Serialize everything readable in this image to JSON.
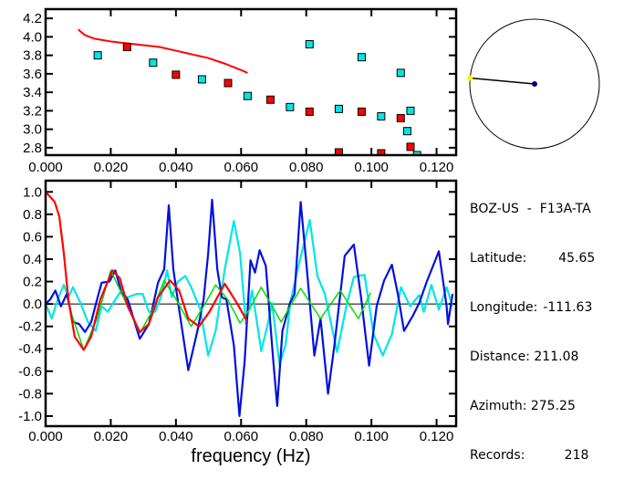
{
  "station_info": {
    "title": "BOZ-US  -  F13A-TA",
    "lines": [
      {
        "label": "Latitude:",
        "value": "45.65"
      },
      {
        "label": "Longitude:",
        "value": "-111.63"
      },
      {
        "label": "Distance:",
        "value": "211.08"
      },
      {
        "label": "Azimuth:",
        "value": "275.25"
      },
      {
        "label": "Records:",
        "value": "218"
      }
    ]
  },
  "colors": {
    "red": "#ff0000",
    "cyan": "#00e5e5",
    "blue": "#0010e0",
    "green": "#00dd00",
    "yellow": "#ffee00",
    "dark_blue": "#000080"
  },
  "chart_data": [
    {
      "type": "scatter",
      "xlim": [
        0,
        0.126
      ],
      "ylim": [
        2.72,
        4.3
      ],
      "xticks": [
        "0.000",
        "0.020",
        "0.040",
        "0.060",
        "0.080",
        "0.100",
        "0.120"
      ],
      "yticks": [
        "2.8",
        "3.0",
        "3.2",
        "3.4",
        "3.6",
        "3.8",
        "4.0",
        "4.2"
      ],
      "curve": {
        "color": "red",
        "x": [
          0.01,
          0.012,
          0.015,
          0.02,
          0.025,
          0.03,
          0.035,
          0.04,
          0.045,
          0.05,
          0.055,
          0.06,
          0.062
        ],
        "y": [
          4.08,
          4.02,
          3.98,
          3.95,
          3.93,
          3.91,
          3.89,
          3.85,
          3.81,
          3.77,
          3.71,
          3.64,
          3.61
        ]
      },
      "series": [
        {
          "color": "red",
          "x": [
            0.025,
            0.04,
            0.056,
            0.069,
            0.081,
            0.09,
            0.097,
            0.103,
            0.109,
            0.112
          ],
          "y": [
            3.89,
            3.59,
            3.5,
            3.32,
            3.19,
            2.75,
            3.19,
            2.74,
            3.12,
            2.81
          ]
        },
        {
          "color": "cyan",
          "x": [
            0.016,
            0.033,
            0.048,
            0.062,
            0.075,
            0.081,
            0.09,
            0.097,
            0.103,
            0.109,
            0.111,
            0.112,
            0.114
          ],
          "y": [
            3.8,
            3.72,
            3.54,
            3.36,
            3.24,
            3.92,
            3.22,
            3.78,
            3.14,
            3.61,
            2.98,
            3.2,
            2.72
          ]
        }
      ]
    },
    {
      "type": "line",
      "xlabel": "frequency (Hz)",
      "xlim": [
        0,
        0.126
      ],
      "ylim": [
        -1.09,
        1.1
      ],
      "xticks": [
        "0.000",
        "0.020",
        "0.040",
        "0.060",
        "0.080",
        "0.100",
        "0.120"
      ],
      "yticks": [
        "-1.0",
        "-0.8",
        "-0.6",
        "-0.4",
        "-0.2",
        "0.0",
        "0.2",
        "0.4",
        "0.6",
        "0.8",
        "1.0"
      ],
      "series": [
        {
          "color": "cyan",
          "x": [
            0,
            0.0019,
            0.0037,
            0.0056,
            0.007,
            0.0084,
            0.0107,
            0.013,
            0.0154,
            0.0172,
            0.0191,
            0.0214,
            0.0228,
            0.0252,
            0.028,
            0.0298,
            0.0317,
            0.0336,
            0.0354,
            0.0373,
            0.0387,
            0.0406,
            0.0429,
            0.0447,
            0.0475,
            0.0499,
            0.0522,
            0.055,
            0.0578,
            0.0597,
            0.0615,
            0.0634,
            0.0662,
            0.0681,
            0.0695,
            0.0718,
            0.0737,
            0.0751,
            0.0774,
            0.0811,
            0.0834,
            0.0857,
            0.0895,
            0.0923,
            0.0946,
            0.0979,
            0.1007,
            0.1035,
            0.1063,
            0.1091,
            0.1119,
            0.1147,
            0.1161,
            0.1184,
            0.1207,
            0.1231,
            0.1249
          ],
          "y": [
            0,
            -0.13,
            0.04,
            0.17,
            0.06,
            0.15,
            0.01,
            -0.16,
            -0.24,
            -0.02,
            -0.07,
            0.04,
            0.1,
            0.06,
            0.09,
            0.09,
            -0.07,
            -0.07,
            0.06,
            0.3,
            0.06,
            0.2,
            0.25,
            0.15,
            -0.05,
            -0.46,
            -0.24,
            0.31,
            0.74,
            0.45,
            -0.18,
            0.12,
            -0.42,
            -0.19,
            0.01,
            -0.54,
            -0.36,
            0.01,
            0.31,
            0.75,
            0.25,
            0.09,
            -0.43,
            -0.02,
            0.24,
            0.26,
            -0.27,
            -0.46,
            -0.27,
            0.15,
            -0.02,
            0.08,
            -0.07,
            0.17,
            -0.05,
            0.15,
            -0.02
          ]
        },
        {
          "color": "blue",
          "x": [
            0,
            0.0014,
            0.003,
            0.0047,
            0.0065,
            0.0084,
            0.0103,
            0.0121,
            0.014,
            0.0158,
            0.0172,
            0.0196,
            0.0214,
            0.0233,
            0.0252,
            0.0289,
            0.0317,
            0.0345,
            0.0364,
            0.0378,
            0.0392,
            0.041,
            0.0438,
            0.0466,
            0.0485,
            0.0499,
            0.0511,
            0.0527,
            0.0541,
            0.0555,
            0.0578,
            0.0595,
            0.0611,
            0.0629,
            0.0643,
            0.0657,
            0.0676,
            0.0699,
            0.0711,
            0.0727,
            0.075,
            0.0764,
            0.0783,
            0.0802,
            0.0825,
            0.0844,
            0.0867,
            0.0886,
            0.0918,
            0.0946,
            0.0969,
            0.0993,
            0.1016,
            0.1039,
            0.1063,
            0.1081,
            0.11,
            0.1128,
            0.1147,
            0.117,
            0.1207,
            0.1231,
            0.1235,
            0.1249
          ],
          "y": [
            0,
            0.04,
            0.12,
            -0.02,
            0.09,
            -0.16,
            -0.18,
            -0.25,
            -0.16,
            0.04,
            0.19,
            0.2,
            0.3,
            0.1,
            0.04,
            -0.31,
            -0.18,
            0.19,
            0.31,
            0.88,
            0.31,
            -0.05,
            -0.59,
            -0.24,
            0.04,
            0.45,
            0.93,
            0.31,
            0.06,
            0.04,
            -0.37,
            -1.0,
            -0.51,
            0.39,
            0.28,
            0.48,
            0.34,
            -0.51,
            -0.91,
            -0.24,
            0.01,
            0.09,
            0.91,
            0.31,
            -0.46,
            -0.13,
            -0.8,
            -0.38,
            0.43,
            0.53,
            0.04,
            -0.55,
            -0.02,
            0.21,
            0.35,
            0.09,
            -0.24,
            -0.1,
            0.01,
            0.2,
            0.47,
            -0.02,
            -0.18,
            0.09
          ]
        },
        {
          "color": "green",
          "x": [
            0.0075,
            0.0117,
            0.0158,
            0.02,
            0.0242,
            0.0289,
            0.0326,
            0.0364,
            0.0401,
            0.0447,
            0.0485,
            0.0522,
            0.0559,
            0.0597,
            0.0625,
            0.0662,
            0.0723,
            0.0783,
            0.0844,
            0.0904,
            0.096,
            0.0998
          ],
          "y": [
            -0.05,
            -0.41,
            -0.13,
            0.3,
            0.04,
            -0.26,
            -0.07,
            0.21,
            0.04,
            -0.2,
            -0.02,
            0.17,
            0.04,
            -0.17,
            -0.05,
            0.15,
            -0.16,
            0.14,
            -0.13,
            0.12,
            -0.13,
            0.1
          ]
        },
        {
          "color": "red",
          "x": [
            0,
            0.0028,
            0.0042,
            0.0056,
            0.007,
            0.0089,
            0.0117,
            0.014,
            0.0168,
            0.0205,
            0.0228,
            0.0252,
            0.0289,
            0.0317,
            0.0345,
            0.0382,
            0.041,
            0.0438,
            0.0471,
            0.0503,
            0.055,
            0.0587,
            0.062
          ],
          "y": [
            1.0,
            0.91,
            0.78,
            0.45,
            0.04,
            -0.29,
            -0.41,
            -0.29,
            0.04,
            0.3,
            0.23,
            -0.02,
            -0.25,
            -0.18,
            0.06,
            0.21,
            0.12,
            -0.13,
            -0.2,
            -0.07,
            0.18,
            0.01,
            -0.16
          ]
        }
      ]
    }
  ],
  "azimuth_map": {
    "azimuth_deg": 275.25
  }
}
